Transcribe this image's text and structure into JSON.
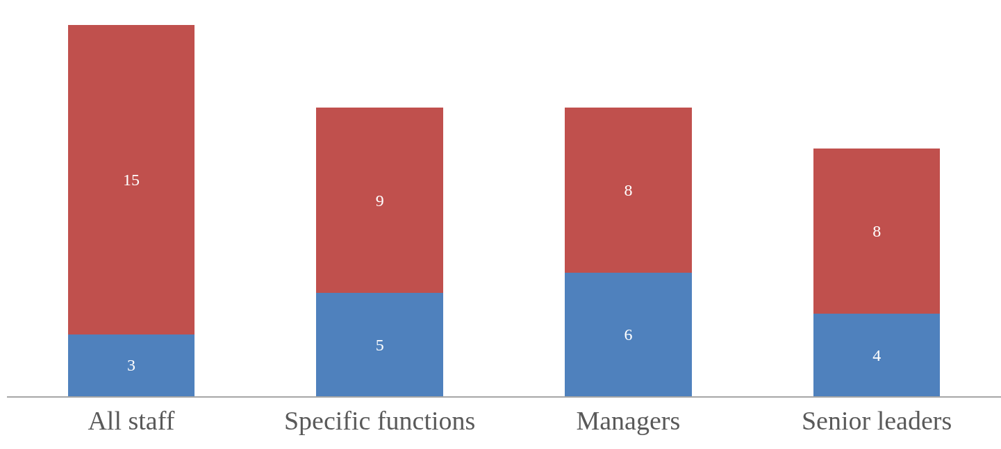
{
  "chart_data": {
    "type": "bar",
    "stacked": true,
    "data_labels": true,
    "categories": [
      "All staff",
      "Specific functions",
      "Managers",
      "Senior leaders"
    ],
    "series": [
      {
        "color": "#4f81bd",
        "values": [
          3,
          5,
          6,
          4
        ]
      },
      {
        "color": "#c0504d",
        "values": [
          15,
          9,
          8,
          8
        ]
      }
    ]
  }
}
